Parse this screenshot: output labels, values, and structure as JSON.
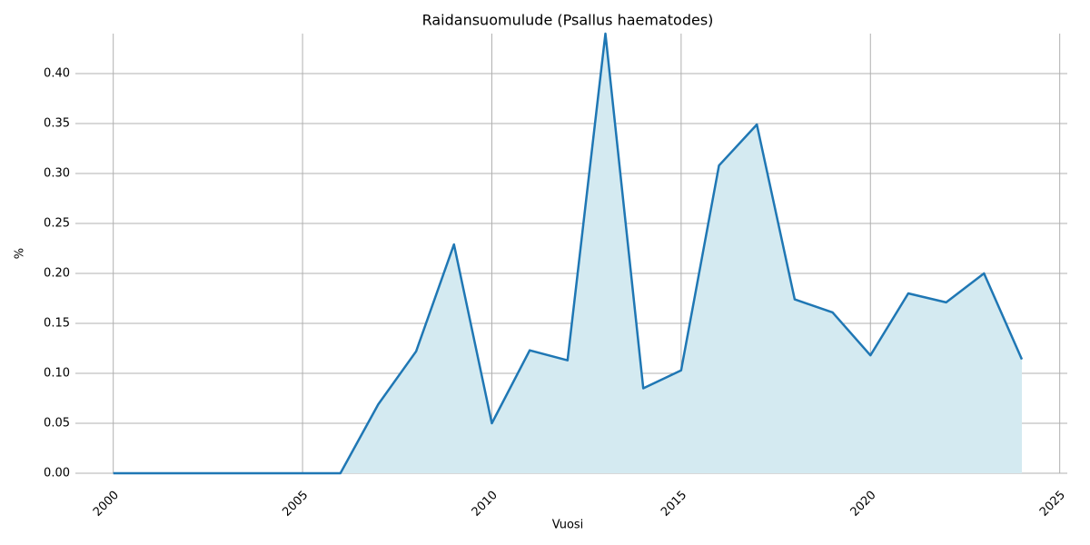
{
  "chart_data": {
    "type": "line",
    "title": "Raidansuomulude (Psallus haematodes)",
    "xlabel": "Vuosi",
    "ylabel": "%",
    "x": [
      2000,
      2001,
      2002,
      2003,
      2004,
      2005,
      2006,
      2007,
      2008,
      2009,
      2010,
      2011,
      2012,
      2013,
      2014,
      2015,
      2016,
      2017,
      2018,
      2019,
      2020,
      2021,
      2022,
      2023,
      2024
    ],
    "series": [
      {
        "name": "%",
        "color": "#1f77b4",
        "fill": "#d4eaf1",
        "values": [
          0,
          0,
          0,
          0,
          0,
          0,
          0,
          0.069,
          0.122,
          0.229,
          0.05,
          0.123,
          0.113,
          0.44,
          0.085,
          0.103,
          0.308,
          0.349,
          0.174,
          0.161,
          0.118,
          0.18,
          0.171,
          0.2,
          0.114
        ]
      }
    ],
    "xlim": [
      1999,
      2025.2
    ],
    "ylim": [
      0,
      0.44
    ],
    "xticks": [
      2000,
      2005,
      2010,
      2015,
      2020,
      2025
    ],
    "yticks": [
      {
        "value": 0,
        "label": "0.00"
      },
      {
        "value": 0.05,
        "label": "0.05"
      },
      {
        "value": 0.1,
        "label": "0.10"
      },
      {
        "value": 0.15,
        "label": "0.15"
      },
      {
        "value": 0.2,
        "label": "0.20"
      },
      {
        "value": 0.25,
        "label": "0.25"
      },
      {
        "value": 0.3,
        "label": "0.30"
      },
      {
        "value": 0.35,
        "label": "0.35"
      },
      {
        "value": 0.4,
        "label": "0.40"
      }
    ],
    "grid": true
  }
}
